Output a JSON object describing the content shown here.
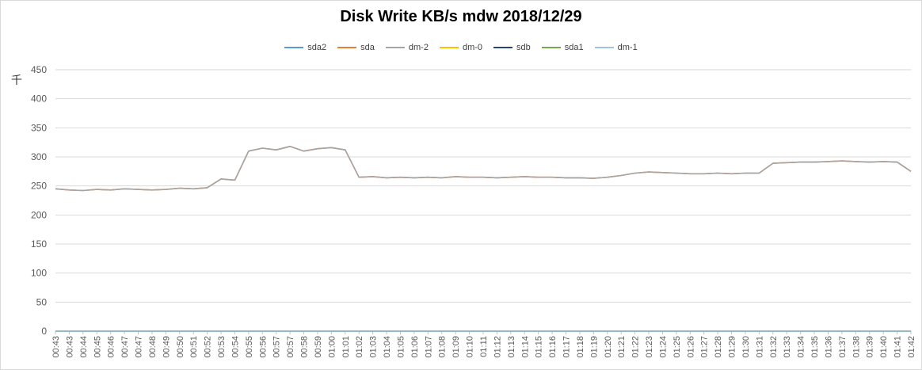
{
  "chart_data": {
    "type": "line",
    "title": "Disk Write KB/s mdw  2018/12/29",
    "ylabel": "千",
    "xlabel": "",
    "ylim": [
      0,
      450
    ],
    "yticks": [
      0,
      50,
      100,
      150,
      200,
      250,
      300,
      350,
      400,
      450
    ],
    "grid": "horizontal",
    "legend_position": "top",
    "x_tick_labels": [
      "00:43",
      "00:43",
      "00:44",
      "00:45",
      "00:46",
      "00:47",
      "00:47",
      "00:48",
      "00:49",
      "00:50",
      "00:51",
      "00:52",
      "00:53",
      "00:54",
      "00:55",
      "00:56",
      "00:57",
      "00:57",
      "00:58",
      "00:59",
      "01:00",
      "01:01",
      "01:02",
      "01:03",
      "01:04",
      "01:05",
      "01:06",
      "01:07",
      "01:08",
      "01:09",
      "01:10",
      "01:11",
      "01:12",
      "01:13",
      "01:14",
      "01:15",
      "01:16",
      "01:17",
      "01:18",
      "01:19",
      "01:20",
      "01:21",
      "01:22",
      "01:23",
      "01:24",
      "01:25",
      "01:26",
      "01:27",
      "01:28",
      "01:29",
      "01:30",
      "01:31",
      "01:32",
      "01:33",
      "01:34",
      "01:35",
      "01:36",
      "01:37",
      "01:38",
      "01:39",
      "01:40",
      "01:41",
      "01:42"
    ],
    "series": [
      {
        "name": "sda2",
        "color": "#5b9bd5",
        "values": [
          0,
          0,
          0,
          0,
          0,
          0,
          0,
          0,
          0,
          0,
          0,
          0,
          0,
          0,
          0,
          0,
          0,
          0,
          0,
          0,
          0,
          0,
          0,
          0,
          0,
          0,
          0,
          0,
          0,
          0,
          0,
          0,
          0,
          0,
          0,
          0,
          0,
          0,
          0,
          0,
          0,
          0,
          0,
          0,
          0,
          0,
          0,
          0,
          0,
          0,
          0,
          0,
          0,
          0,
          0,
          0,
          0,
          0,
          0,
          0,
          0,
          0,
          0
        ]
      },
      {
        "name": "sda",
        "color": "#ed7d31",
        "values": [
          245,
          243,
          242,
          244,
          243,
          245,
          244,
          243,
          244,
          246,
          245,
          247,
          262,
          260,
          310,
          315,
          312,
          318,
          310,
          314,
          316,
          312,
          265,
          266,
          264,
          265,
          264,
          265,
          264,
          266,
          265,
          265,
          264,
          265,
          266,
          265,
          265,
          264,
          264,
          263,
          265,
          268,
          272,
          274,
          273,
          272,
          271,
          271,
          272,
          271,
          272,
          272,
          289,
          290,
          291,
          291,
          292,
          293,
          292,
          291,
          292,
          291,
          275
        ]
      },
      {
        "name": "dm-2",
        "color": "#a5a5a5",
        "values": [
          245,
          243,
          242,
          244,
          243,
          245,
          244,
          243,
          244,
          246,
          245,
          247,
          262,
          260,
          310,
          315,
          312,
          318,
          310,
          314,
          316,
          312,
          265,
          266,
          264,
          265,
          264,
          265,
          264,
          266,
          265,
          265,
          264,
          265,
          266,
          265,
          265,
          264,
          264,
          263,
          265,
          268,
          272,
          274,
          273,
          272,
          271,
          271,
          272,
          271,
          272,
          272,
          289,
          290,
          291,
          291,
          292,
          293,
          292,
          291,
          292,
          291,
          275
        ]
      },
      {
        "name": "dm-0",
        "color": "#ffc000",
        "values": [
          0,
          0,
          0,
          0,
          0,
          0,
          0,
          0,
          0,
          0,
          0,
          0,
          0,
          0,
          0,
          0,
          0,
          0,
          0,
          0,
          0,
          0,
          0,
          0,
          0,
          0,
          0,
          0,
          0,
          0,
          0,
          0,
          0,
          0,
          0,
          0,
          0,
          0,
          0,
          0,
          0,
          0,
          0,
          0,
          0,
          0,
          0,
          0,
          0,
          0,
          0,
          0,
          0,
          0,
          0,
          0,
          0,
          0,
          0,
          0,
          0,
          0,
          0
        ]
      },
      {
        "name": "sdb",
        "color": "#264478",
        "values": [
          0,
          0,
          0,
          0,
          0,
          0,
          0,
          0,
          0,
          0,
          0,
          0,
          0,
          0,
          0,
          0,
          0,
          0,
          0,
          0,
          0,
          0,
          0,
          0,
          0,
          0,
          0,
          0,
          0,
          0,
          0,
          0,
          0,
          0,
          0,
          0,
          0,
          0,
          0,
          0,
          0,
          0,
          0,
          0,
          0,
          0,
          0,
          0,
          0,
          0,
          0,
          0,
          0,
          0,
          0,
          0,
          0,
          0,
          0,
          0,
          0,
          0,
          0
        ]
      },
      {
        "name": "sda1",
        "color": "#70ad47",
        "values": [
          0,
          0,
          0,
          0,
          0,
          0,
          0,
          0,
          0,
          0,
          0,
          0,
          0,
          0,
          0,
          0,
          0,
          0,
          0,
          0,
          0,
          0,
          0,
          0,
          0,
          0,
          0,
          0,
          0,
          0,
          0,
          0,
          0,
          0,
          0,
          0,
          0,
          0,
          0,
          0,
          0,
          0,
          0,
          0,
          0,
          0,
          0,
          0,
          0,
          0,
          0,
          0,
          0,
          0,
          0,
          0,
          0,
          0,
          0,
          0,
          0,
          0,
          0
        ]
      },
      {
        "name": "dm-1",
        "color": "#9dc3e6",
        "values": [
          0,
          0,
          0,
          0,
          0,
          0,
          0,
          0,
          0,
          0,
          0,
          0,
          0,
          0,
          0,
          0,
          0,
          0,
          0,
          0,
          0,
          0,
          0,
          0,
          0,
          0,
          0,
          0,
          0,
          0,
          0,
          0,
          0,
          0,
          0,
          0,
          0,
          0,
          0,
          0,
          0,
          0,
          0,
          0,
          0,
          0,
          0,
          0,
          0,
          0,
          0,
          0,
          0,
          0,
          0,
          0,
          0,
          0,
          0,
          0,
          0,
          0,
          0
        ]
      }
    ]
  }
}
